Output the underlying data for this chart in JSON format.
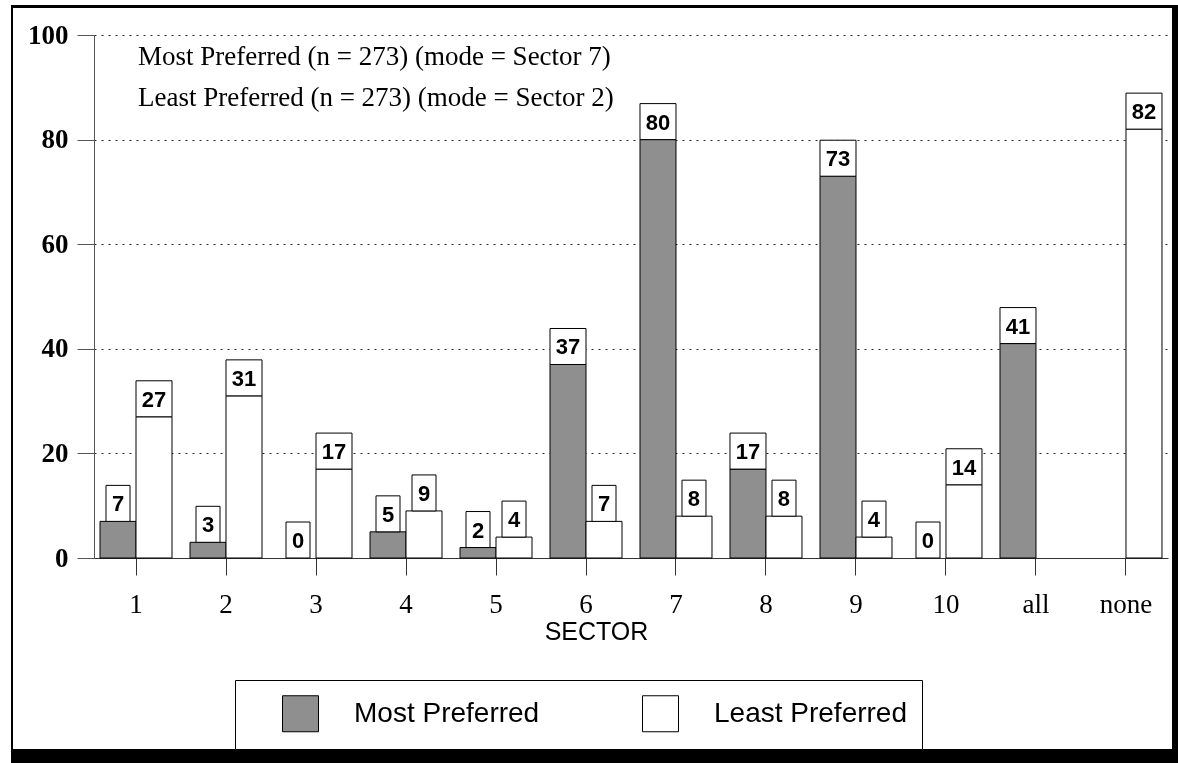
{
  "chart_data": {
    "type": "bar",
    "categories": [
      "1",
      "2",
      "3",
      "4",
      "5",
      "6",
      "7",
      "8",
      "9",
      "10",
      "all",
      "none"
    ],
    "xlabel": "SECTOR",
    "series": [
      {
        "name": "Most Preferred",
        "color": "#8f8f8f",
        "values": [
          7,
          3,
          0,
          5,
          2,
          37,
          80,
          17,
          73,
          0,
          41,
          null
        ]
      },
      {
        "name": "Least Preferred",
        "color": "#ffffff",
        "values": [
          27,
          31,
          17,
          9,
          4,
          7,
          8,
          8,
          4,
          14,
          null,
          82
        ]
      }
    ],
    "ylim": [
      0,
      100
    ],
    "yticks": [
      0,
      20,
      40,
      60,
      80,
      100
    ],
    "grid": "y",
    "legend": "bottom",
    "data_labels": true,
    "annotations": [
      "Most Preferred (n = 273) (mode = Sector 7)",
      "Least Preferred (n = 273) (mode = Sector 2)"
    ]
  }
}
